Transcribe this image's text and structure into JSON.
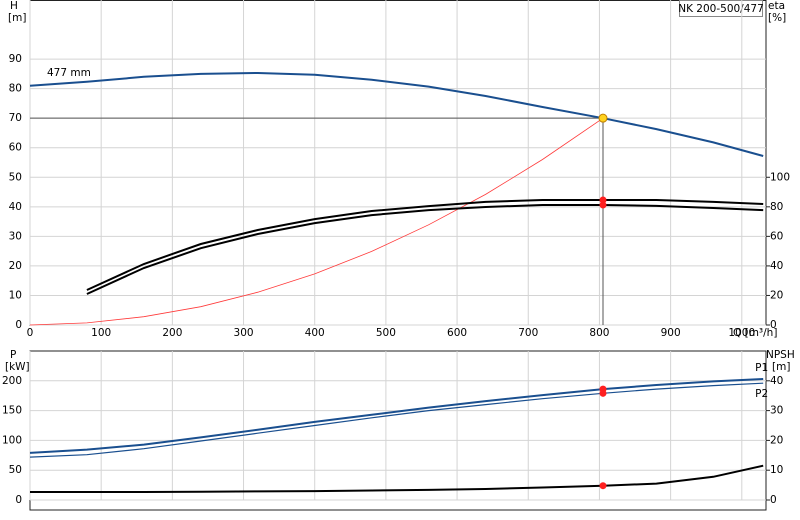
{
  "chart_data": [
    {
      "type": "line",
      "title": "NK 200-500/477",
      "y_label": "H",
      "y_unit": "[m]",
      "y2_label": "eta",
      "y2_unit": "[%]",
      "x_label": "Q [m³/h]",
      "x": [
        0,
        80,
        160,
        240,
        320,
        400,
        480,
        560,
        640,
        720,
        805,
        880,
        960,
        1030
      ],
      "xlim": [
        0,
        1034
      ],
      "xticks": [
        0,
        100,
        200,
        300,
        400,
        500,
        600,
        700,
        800,
        900,
        1000
      ],
      "ylim": [
        0,
        110
      ],
      "yticks": [
        0,
        10,
        20,
        30,
        40,
        50,
        60,
        70,
        80,
        90
      ],
      "y2lim": [
        0,
        220
      ],
      "y2ticks": [
        0,
        20,
        40,
        60,
        80,
        100
      ],
      "grid": true,
      "duty_point": {
        "x": 805,
        "y": 70,
        "color": "#ffd21f"
      },
      "series": [
        {
          "name": "477 mm",
          "color": "#1a4f8f",
          "width": 2,
          "values": [
            81,
            82.3,
            84,
            85,
            85.3,
            84.7,
            83,
            80.7,
            77.5,
            73.8,
            70,
            66.3,
            61.8,
            57.2
          ]
        },
        {
          "color": "#ff3a3a",
          "width": 0.8,
          "values": [
            0,
            0.7,
            2.8,
            6.2,
            11.1,
            17.3,
            24.9,
            33.9,
            44.2,
            56,
            70,
            null,
            null,
            null
          ]
        },
        {
          "color": "#000000",
          "width": 2,
          "axis": "y2",
          "marker_color": "#ff2020",
          "values": [
            null,
            23.7,
            41.3,
            54.8,
            64.3,
            71.7,
            77.2,
            80.5,
            83.3,
            84.6,
            84.6,
            84.6,
            83.3,
            81.9
          ]
        },
        {
          "color": "#000000",
          "width": 2,
          "axis": "y2",
          "marker_color": "#ff2020",
          "values": [
            null,
            21,
            38.6,
            52,
            61.6,
            69,
            74.4,
            77.8,
            79.9,
            81.2,
            81.2,
            80.6,
            79.2,
            77.8
          ]
        }
      ]
    },
    {
      "type": "line",
      "y_label": "P",
      "y_unit": "[kW]",
      "y2_label": "NPSH",
      "y2_unit": "[m]",
      "x": [
        0,
        80,
        160,
        240,
        320,
        400,
        480,
        560,
        640,
        720,
        805,
        880,
        960,
        1030
      ],
      "xlim": [
        0,
        1034
      ],
      "xticks": [
        0,
        100,
        200,
        300,
        400,
        500,
        600,
        700,
        800,
        900,
        1000
      ],
      "ylim": [
        0,
        250
      ],
      "yticks": [
        0,
        50,
        100,
        150,
        200
      ],
      "y2lim": [
        0,
        50
      ],
      "y2ticks": [
        0,
        10,
        20,
        30,
        40
      ],
      "grid": true,
      "series": [
        {
          "name": "P1",
          "color": "#1a4f8f",
          "width": 2,
          "marker_color": "#ff2020",
          "values": [
            79,
            84.5,
            93,
            105,
            118,
            131,
            143,
            155,
            166,
            176,
            186,
            193,
            199,
            203
          ]
        },
        {
          "name": "P2",
          "color": "#1a4f8f",
          "width": 1.2,
          "marker_color": "#ff2020",
          "values": [
            72,
            76,
            86,
            99,
            112,
            125,
            138,
            150,
            160,
            170,
            179,
            186,
            192,
            196
          ]
        },
        {
          "color": "#000000",
          "width": 2,
          "axis": "y2",
          "marker_color": "#ff2020",
          "values": [
            2.7,
            2.7,
            2.7,
            2.8,
            2.9,
            3,
            3.2,
            3.4,
            3.7,
            4.2,
            4.8,
            5.5,
            7.8,
            11.5
          ]
        }
      ]
    }
  ]
}
